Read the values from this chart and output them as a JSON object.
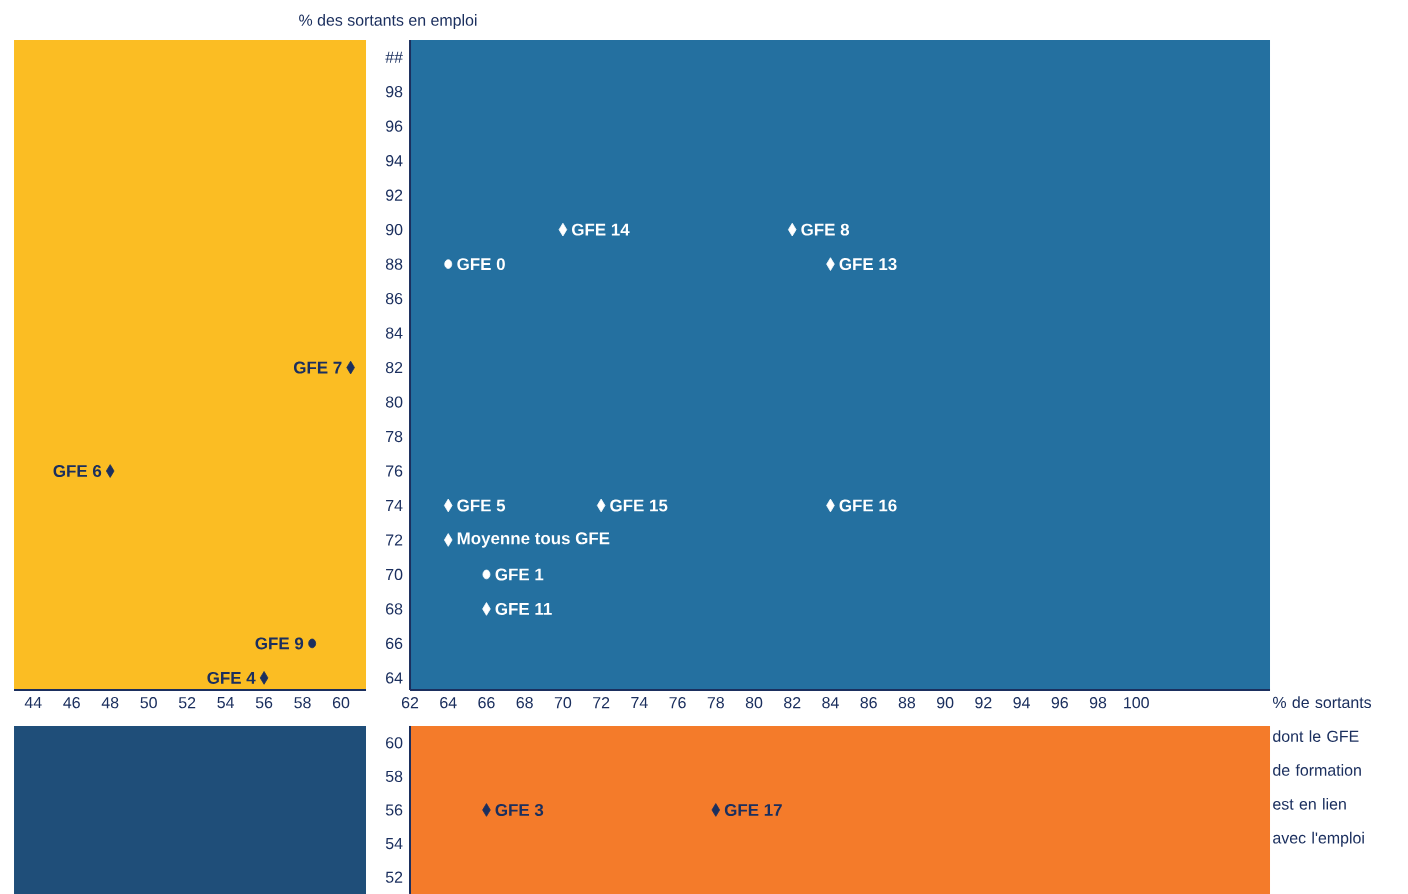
{
  "chart_data": [
    {
      "type": "scatter",
      "ylabel": "% des sortants en emploi",
      "xlim": [
        43,
        61.3
      ],
      "ylim": [
        63.3,
        101
      ],
      "xticks": [
        44,
        46,
        48,
        50,
        52,
        54,
        56,
        58,
        60
      ],
      "tick_labels": "x",
      "marker": "diamond",
      "bands": [
        {
          "axis": "x",
          "from": 43,
          "to": 61.3,
          "color": "#fbbd23"
        }
      ],
      "series": [
        {
          "name": "GFE 7",
          "color": "#1b2f5e",
          "x": [
            60.5
          ],
          "values": [
            82
          ]
        },
        {
          "name": "GFE 6",
          "color": "#1b2f5e",
          "x": [
            48
          ],
          "values": [
            76
          ]
        },
        {
          "name": "GFE 9",
          "color": "#1b2f5e",
          "x": [
            58.5
          ],
          "values": [
            66
          ],
          "marker": "circle"
        },
        {
          "name": "GFE 4",
          "color": "#1b2f5e",
          "x": [
            56
          ],
          "values": [
            64
          ]
        }
      ]
    },
    {
      "type": "scatter",
      "xlim": [
        62,
        107
      ],
      "ylim": [
        63.3,
        101
      ],
      "xticks": [
        62,
        64,
        66,
        68,
        70,
        72,
        74,
        76,
        78,
        80,
        82,
        84,
        86,
        88,
        90,
        92,
        94,
        96,
        98,
        100
      ],
      "yticks": [
        64,
        66,
        68,
        70,
        72,
        74,
        76,
        78,
        80,
        82,
        84,
        86,
        88,
        90,
        92,
        94,
        96,
        98,
        {
          "value": 100,
          "label": "##"
        }
      ],
      "marker": "diamond",
      "bands": [
        {
          "axis": "x",
          "from": 62,
          "to": 107,
          "color": "#2470a0"
        }
      ],
      "series": [
        {
          "name": "GFE 0",
          "color": "#ffffff",
          "x": [
            64
          ],
          "values": [
            88
          ],
          "marker": "circle"
        },
        {
          "name": "GFE 14",
          "color": "#ffffff",
          "x": [
            70
          ],
          "values": [
            90
          ]
        },
        {
          "name": "GFE 8",
          "color": "#ffffff",
          "x": [
            82
          ],
          "values": [
            90
          ]
        },
        {
          "name": "GFE 13",
          "color": "#ffffff",
          "x": [
            84
          ],
          "values": [
            88
          ]
        },
        {
          "name": "GFE 5",
          "color": "#ffffff",
          "x": [
            64
          ],
          "values": [
            74
          ]
        },
        {
          "name": "GFE 15",
          "color": "#ffffff",
          "x": [
            72
          ],
          "values": [
            74
          ]
        },
        {
          "name": "GFE 16",
          "color": "#ffffff",
          "x": [
            84
          ],
          "values": [
            74
          ]
        },
        {
          "name": "Moyenne tous GFE",
          "color": "#ffffff",
          "x": [
            64
          ],
          "values": [
            72
          ]
        },
        {
          "name": "GFE 1",
          "color": "#ffffff",
          "x": [
            66
          ],
          "values": [
            70
          ],
          "marker": "circle"
        },
        {
          "name": "GFE 11",
          "color": "#ffffff",
          "x": [
            66
          ],
          "values": [
            68
          ]
        }
      ]
    },
    {
      "type": "scatter",
      "xlabel": "% de sortants dont le GFE de formation est en lien avec l'emploi",
      "xlim": [
        62,
        107
      ],
      "ylim": [
        51,
        61
      ],
      "xticks": [
        62,
        64,
        66,
        68,
        70,
        72,
        74,
        76,
        78,
        80,
        82,
        84,
        86,
        88,
        90,
        92,
        94,
        96,
        98,
        100
      ],
      "yticks": [
        52,
        54,
        56,
        58,
        60
      ],
      "tick_labels": "y",
      "marker": "diamond",
      "bands": [
        {
          "axis": "x",
          "from": 62,
          "to": 107,
          "color": "#f47b2a"
        }
      ],
      "series": [
        {
          "name": "GFE 3",
          "color": "#1b2f5e",
          "x": [
            66
          ],
          "values": [
            56
          ]
        },
        {
          "name": "GFE 17",
          "color": "#1b2f5e",
          "x": [
            78
          ],
          "values": [
            56
          ]
        }
      ]
    }
  ]
}
